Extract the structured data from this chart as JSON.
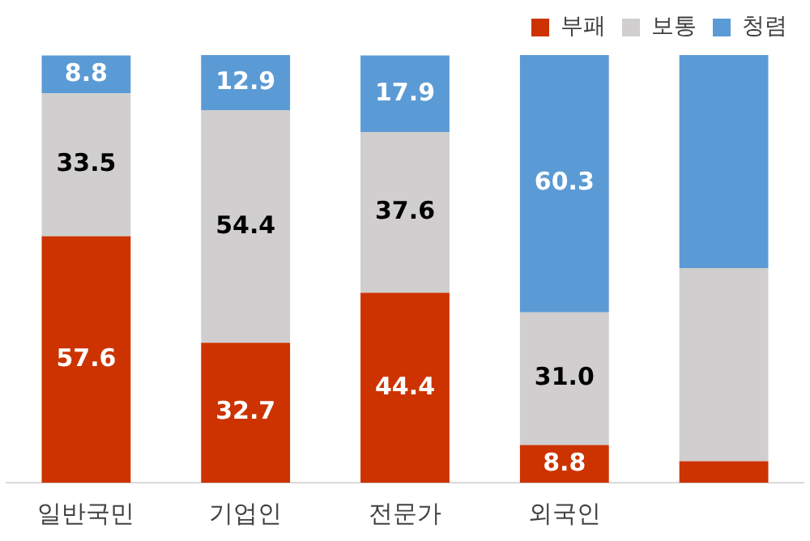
{
  "chart_data": {
    "type": "bar",
    "stacked": true,
    "categories": [
      "일반국민",
      "기업인",
      "전문가",
      "외국인",
      null
    ],
    "series": [
      {
        "name": "부패",
        "color": "#cc3300",
        "values": [
          57.6,
          32.7,
          44.4,
          8.8,
          5.0
        ],
        "value_labels": [
          "57.6",
          "32.7",
          "44.4",
          "8.8",
          null
        ]
      },
      {
        "name": "보통",
        "color": "#d0cece",
        "values": [
          33.5,
          54.4,
          37.6,
          31.0,
          45.2
        ],
        "value_labels": [
          "33.5",
          "54.4",
          "37.6",
          "31.0",
          null
        ]
      },
      {
        "name": "청렴",
        "color": "#5b9bd5",
        "values": [
          8.8,
          12.9,
          17.9,
          60.3,
          49.8
        ],
        "value_labels": [
          "8.8",
          "12.9",
          "17.9",
          "60.3",
          null
        ]
      }
    ],
    "ylim": [
      0,
      100
    ],
    "tick_labels": "x",
    "legend": "top right",
    "grid": false
  }
}
